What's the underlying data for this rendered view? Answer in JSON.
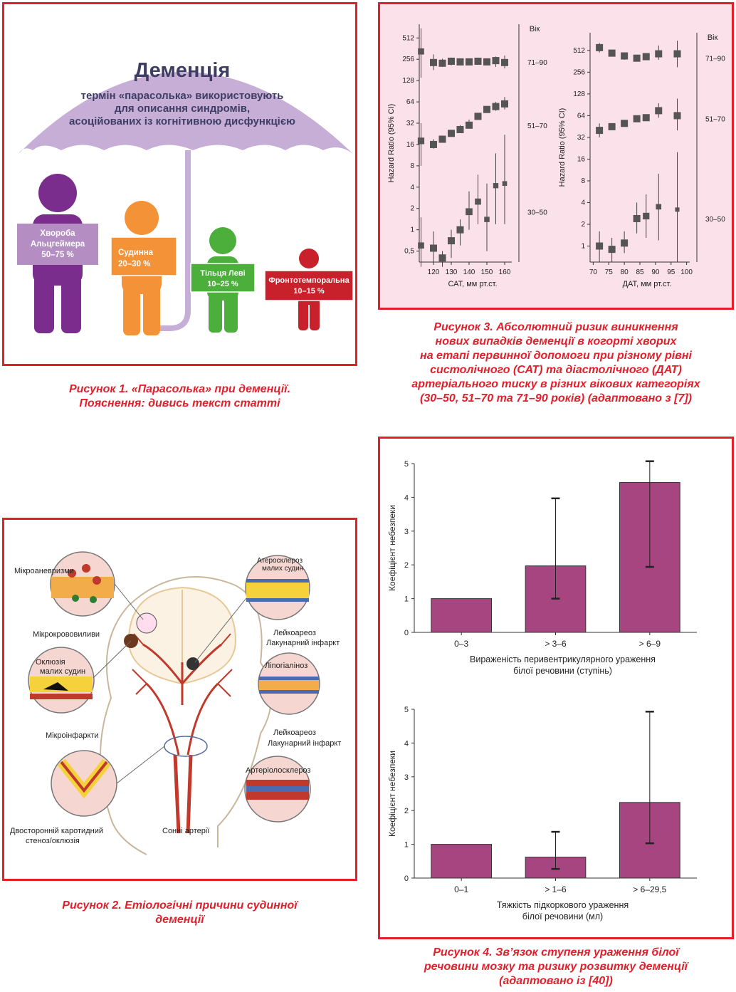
{
  "fig1": {
    "umbrella_title": "Деменція",
    "umbrella_subtitle": [
      "термін «парасолька» використовують",
      "для описання синдромів,",
      "асоційованих із когнітивною дисфункцією"
    ],
    "figures": [
      {
        "label": [
          "Хвороба",
          "Альцгеймера",
          "50–75 %"
        ],
        "color": "#7b2d8e",
        "sign": "#b48ec3"
      },
      {
        "label": [
          "Судинна",
          "20–30 %"
        ],
        "color": "#f39237",
        "sign": "#f39237"
      },
      {
        "label": [
          "Тільця Леві",
          "10–25 %"
        ],
        "color": "#4caf3c",
        "sign": "#4caf3c"
      },
      {
        "label": [
          "Фронтотемпоральна",
          "10–15 %"
        ],
        "color": "#c8212b",
        "sign": "#c8212b"
      }
    ],
    "caption": [
      "Рисунок 1. «Парасолька» при деменції.",
      "Пояснення: дивись текст статті"
    ]
  },
  "fig2": {
    "labels": {
      "micro_aneurysm": "Мікроаневризми",
      "micro_hemorrhage": "Мікрокрововиливи",
      "small_vessel_occlusion": [
        "Оклюзія",
        "малих судин"
      ],
      "micro_infarcts": "Мікроінфаркти",
      "carotid": [
        "Двосторонній каротидний",
        "стеноз/оклюзія"
      ],
      "carotid_arteries": "Сонні артерії",
      "atherosclerosis": [
        "Атеросклероз",
        "малих судин"
      ],
      "leuko1": [
        "Лейкоареоз",
        "Лакунарний інфаркт"
      ],
      "lipohyalinosis": "Ліпогіаліноз",
      "leuko2": [
        "Лейкоареоз",
        "Лакунарний інфаркт"
      ],
      "arteriolosclerosis": "Артеріолосклероз"
    },
    "caption": [
      "Рисунок 2. Етіологічні причини судинної",
      "деменції"
    ]
  },
  "fig3": {
    "caption": [
      "Рисунок 3. Абсолютний ризик виникнення",
      "нових випадків деменції в когорті хворих",
      "на етапі первинної допомоги при різному рівні",
      "систолічного (САТ) та діастолічного (ДАТ)",
      "артеріального тиску в різних вікових категоріях",
      "(30–50, 51–70 та 71–90 років) (адаптовано з [7])"
    ]
  },
  "chart_data": [
    {
      "type": "scatter",
      "xlabel": "САТ, мм рт.ст.",
      "ylabel": "Hazard Ratio (95% CI)",
      "yscale": "log2",
      "yticks": [
        "0,5",
        "1",
        "2",
        "4",
        "8",
        "16",
        "32",
        "64",
        "128",
        "256",
        "512"
      ],
      "xticks": [
        120,
        130,
        140,
        150,
        160
      ],
      "xlim": [
        112,
        164
      ],
      "ylim": [
        0.35,
        800
      ],
      "legend_title": "Вік",
      "series": [
        {
          "name": "71–90",
          "x": [
            113,
            120,
            125,
            130,
            135,
            140,
            145,
            150,
            155,
            160
          ],
          "y": [
            330,
            230,
            225,
            240,
            235,
            235,
            240,
            235,
            245,
            230
          ],
          "lo": [
            140,
            180,
            200,
            210,
            210,
            215,
            215,
            210,
            200,
            190
          ],
          "hi": [
            700,
            300,
            260,
            270,
            260,
            260,
            260,
            260,
            280,
            290
          ]
        },
        {
          "name": "51–70",
          "x": [
            113,
            120,
            125,
            130,
            135,
            140,
            145,
            150,
            155,
            160
          ],
          "y": [
            18,
            16,
            19,
            23,
            26,
            30,
            40,
            50,
            55,
            60
          ],
          "lo": [
            8,
            14,
            17,
            21,
            24,
            28,
            36,
            45,
            48,
            50
          ],
          "hi": [
            32,
            19,
            21,
            26,
            30,
            36,
            44,
            56,
            64,
            75
          ]
        },
        {
          "name": "30–50",
          "x": [
            113,
            120,
            125,
            130,
            135,
            140,
            145,
            150,
            155,
            160
          ],
          "y": [
            0.6,
            0.55,
            0.4,
            0.7,
            1.0,
            1.8,
            2.5,
            1.4,
            4.2,
            4.5
          ],
          "lo": [
            0.3,
            0.35,
            0.3,
            0.4,
            0.6,
            1.0,
            1.2,
            0.5,
            1.2,
            1.2
          ],
          "hi": [
            1.5,
            0.95,
            0.5,
            1.0,
            1.4,
            3.5,
            6.0,
            4.5,
            12,
            22
          ]
        }
      ]
    },
    {
      "type": "scatter",
      "xlabel": "ДАТ, мм рт.ст.",
      "ylabel": "Hazard Ratio (95% CI)",
      "yscale": "log2",
      "yticks": [
        "1",
        "2",
        "4",
        "8",
        "16",
        "32",
        "64",
        "128",
        "256",
        "512"
      ],
      "xticks": [
        70,
        75,
        80,
        85,
        90,
        95,
        100
      ],
      "xlim": [
        69,
        101
      ],
      "ylim": [
        0.6,
        900
      ],
      "legend_title": "Вік",
      "series": [
        {
          "name": "71–90",
          "x": [
            72,
            76,
            80,
            84,
            87,
            91,
            97
          ],
          "y": [
            560,
            470,
            430,
            400,
            420,
            460,
            460
          ],
          "lo": [
            480,
            430,
            380,
            360,
            380,
            380,
            300
          ],
          "hi": [
            650,
            520,
            480,
            440,
            470,
            600,
            700
          ]
        },
        {
          "name": "51–70",
          "x": [
            72,
            76,
            80,
            84,
            87,
            91,
            97
          ],
          "y": [
            40,
            45,
            50,
            58,
            60,
            75,
            64
          ],
          "lo": [
            32,
            41,
            45,
            54,
            56,
            60,
            40
          ],
          "hi": [
            50,
            49,
            56,
            63,
            65,
            95,
            110
          ]
        },
        {
          "name": "30–50",
          "x": [
            72,
            76,
            80,
            84,
            87,
            91,
            97
          ],
          "y": [
            1.0,
            0.9,
            1.1,
            2.4,
            2.6,
            3.5,
            3.2
          ],
          "lo": [
            0.6,
            0.6,
            0.8,
            1.5,
            1.3,
            1.2,
            0.6
          ],
          "hi": [
            1.6,
            1.3,
            1.6,
            4.0,
            5.2,
            10,
            20
          ]
        }
      ]
    },
    {
      "type": "bar",
      "ylabel": "Коефіцієнт небезпеки",
      "xlabel": [
        "Вираженість перивентрикулярного ураження",
        "білої речовини (ступінь)"
      ],
      "categories": [
        "0–3",
        "> 3–6",
        "> 6–9"
      ],
      "values": [
        1.0,
        1.97,
        4.44
      ],
      "err_low": [
        1.0,
        1.0,
        1.94
      ],
      "err_high": [
        1.0,
        3.97,
        5.07
      ],
      "ylim": [
        0,
        5
      ],
      "yticks": [
        0,
        1,
        2,
        3,
        4,
        5
      ],
      "bar_color": "#a6457f"
    },
    {
      "type": "bar",
      "ylabel": "Коефіцієнт небезпеки",
      "xlabel": [
        "Тяжкість підкоркового ураження",
        "білої речовини (мл)"
      ],
      "categories": [
        "0–1",
        "> 1–6",
        "> 6–29,5"
      ],
      "values": [
        1.0,
        0.62,
        2.24
      ],
      "err_low": [
        1.0,
        0.27,
        1.03
      ],
      "err_high": [
        1.0,
        1.37,
        4.93
      ],
      "ylim": [
        0,
        5
      ],
      "yticks": [
        0,
        1,
        2,
        3,
        4,
        5
      ],
      "bar_color": "#a6457f"
    }
  ],
  "fig4": {
    "caption": [
      "Рисунок 4. Зв’язок ступеня ураження білої",
      "речовини мозку та ризику розвитку деменції",
      "(адаптовано із [40])"
    ]
  }
}
